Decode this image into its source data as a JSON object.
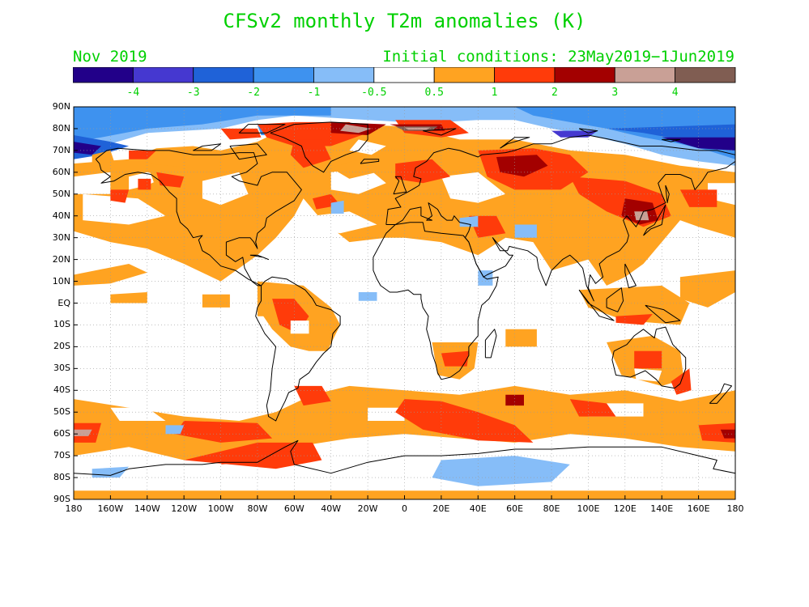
{
  "title": "CFSv2 monthly T2m anomalies (K)",
  "month": "Nov 2019",
  "init": "Initial conditions: 23May2019−1Jun2019",
  "colors": {
    "text": "#00d000",
    "ocean_base": "#ffffff",
    "coast": "#000000"
  },
  "legend": {
    "bins": [
      "#220089",
      "#4538d0",
      "#1f62d8",
      "#3e92ef",
      "#86bdf8",
      "#ffffff",
      "#ffa321",
      "#ff3b0a",
      "#a30000",
      "#c9a096",
      "#805d52"
    ],
    "labels": [
      "-4",
      "-3",
      "-2",
      "-1",
      "-0.5",
      "0.5",
      "1",
      "2",
      "3",
      "4"
    ]
  },
  "map": {
    "lon_range": [
      -180,
      180
    ],
    "lat_range": [
      -90,
      90
    ],
    "lat_labels": [
      "90N",
      "80N",
      "70N",
      "60N",
      "50N",
      "40N",
      "30N",
      "20N",
      "10N",
      "EQ",
      "10S",
      "20S",
      "30S",
      "40S",
      "50S",
      "60S",
      "70S",
      "80S",
      "90S"
    ],
    "lon_labels": [
      "180",
      "160W",
      "140W",
      "120W",
      "100W",
      "80W",
      "60W",
      "40W",
      "20W",
      "0",
      "20E",
      "40E",
      "60E",
      "80E",
      "100E",
      "120E",
      "140E",
      "160E",
      "180"
    ]
  }
}
